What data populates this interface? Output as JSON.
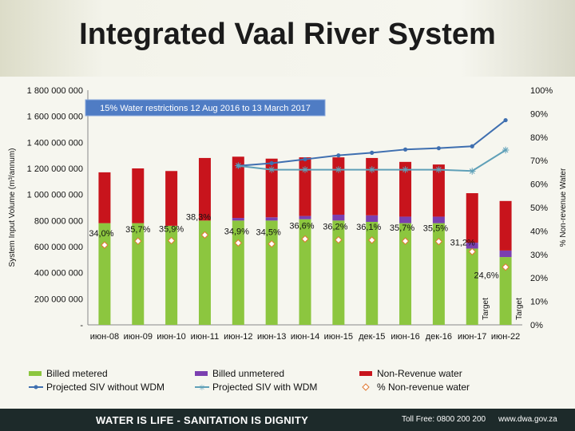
{
  "page": {
    "title": "Integrated Vaal River System",
    "footer_slogan": "WATER IS LIFE - SANITATION IS DIGNITY",
    "footer_tollfree": "Toll Free: 0800 200 200",
    "footer_web": "www.dwa.gov.za"
  },
  "chart_data": {
    "type": "bar",
    "stacked": true,
    "title": "",
    "annotation": "15% Water restrictions 12 Aug 2016 to 13 March 2017",
    "ylabel": "System Input Volume (m³/annum)",
    "y2label": "% Non-revenue Water",
    "ylim": [
      0,
      1800000
    ],
    "y2lim": [
      0,
      100
    ],
    "yticks": [
      "-",
      "200 000 000",
      "400 000 000",
      "600 000 000",
      "800 000 000",
      "1 000 000 000",
      "1 200 000 000",
      "1 400 000 000",
      "1 600 000 000",
      "1 800 000 000"
    ],
    "y2ticks": [
      "0%",
      "10%",
      "20%",
      "30%",
      "40%",
      "50%",
      "60%",
      "70%",
      "80%",
      "90%",
      "100%"
    ],
    "categories": [
      "июн-08",
      "июн-09",
      "июн-10",
      "июн-11",
      "июн-12",
      "июн-13",
      "июн-14",
      "июн-15",
      "дек-15",
      "июн-16",
      "дек-16",
      "июн-17",
      "июн-22"
    ],
    "series": [
      {
        "name": "Billed metered",
        "color": "#8cc63f",
        "type": "bar",
        "values": [
          780,
          780,
          760,
          800,
          800,
          800,
          810,
          800,
          790,
          780,
          780,
          585,
          520
        ]
      },
      {
        "name": "Billed unmetered",
        "color": "#7b3fb0",
        "type": "bar",
        "values": [
          0,
          0,
          0,
          0,
          20,
          25,
          25,
          45,
          50,
          50,
          50,
          45,
          50
        ]
      },
      {
        "name": "Non-Revenue water",
        "color": "#c8141c",
        "type": "bar",
        "values": [
          390,
          420,
          420,
          480,
          470,
          450,
          450,
          440,
          440,
          420,
          400,
          380,
          380
        ]
      },
      {
        "name": "Projected SIV without WDM",
        "color": "#3f6fb0",
        "type": "line",
        "values": [
          null,
          null,
          null,
          null,
          1220,
          1240,
          1270,
          1300,
          1320,
          1345,
          1355,
          1370,
          1570
        ]
      },
      {
        "name": "Projected SIV with WDM",
        "color": "#5fa0b8",
        "type": "line",
        "values": [
          null,
          null,
          null,
          null,
          1220,
          1190,
          1190,
          1190,
          1190,
          1190,
          1190,
          1180,
          1340
        ]
      },
      {
        "name": "% Non-revenue water",
        "color": "#e07830",
        "type": "points",
        "axis": "y2",
        "values": [
          34.0,
          35.7,
          35.9,
          38.3,
          34.9,
          34.5,
          36.6,
          36.2,
          36.1,
          35.7,
          35.5,
          31.2,
          24.6
        ]
      }
    ],
    "value_units": "million m³/annum",
    "data_labels": [
      "34,0%",
      "35,7%",
      "35,9%",
      "38,3%",
      "34,9%",
      "34,5%",
      "36,6%",
      "36,2%",
      "36,1%",
      "35,7%",
      "35,5%",
      "31,2%",
      "24,6%"
    ],
    "target_labels": [
      "Target",
      "Target"
    ],
    "grid": false,
    "legend": "bottom"
  }
}
